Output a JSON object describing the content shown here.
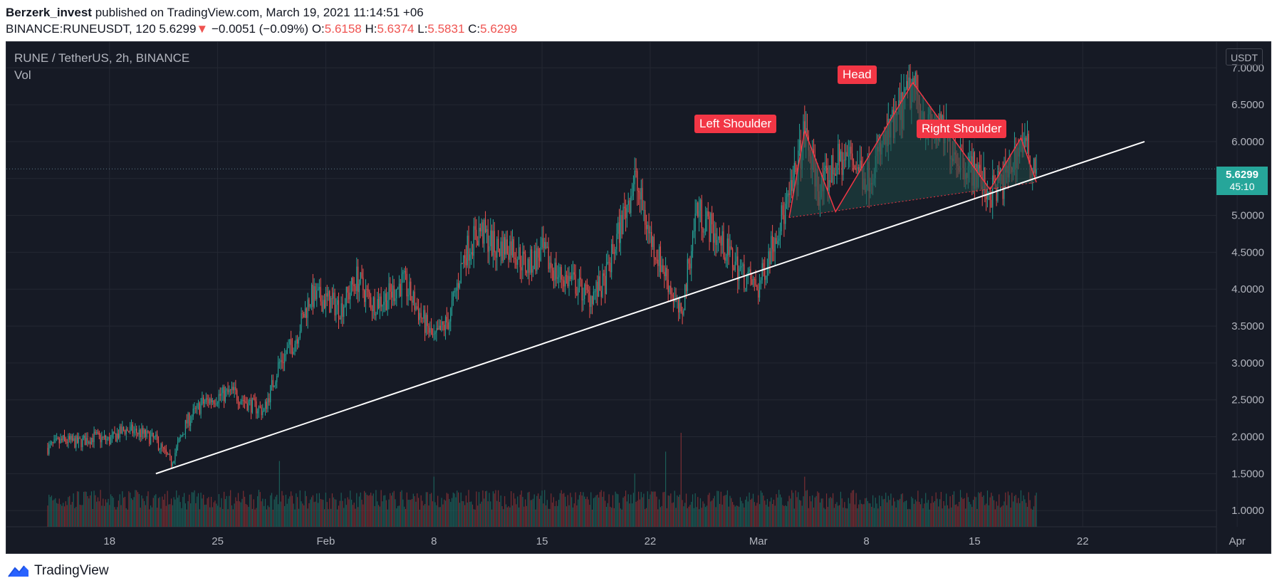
{
  "header": {
    "publisher": "Berzerk_invest",
    "published_text": "published on TradingView.com, March 19, 2021 11:14:51 +06",
    "symbol": "BINANCE:RUNEUSDT, 120",
    "last": "5.6299",
    "change_arrow": "▼",
    "change": "−0.0051 (−0.09%)",
    "o_label": "O:",
    "o_value": "5.6158",
    "h_label": "H:",
    "h_value": "5.6374",
    "l_label": "L:",
    "l_value": "5.5831",
    "c_label": "C:",
    "c_value": "5.6299"
  },
  "legend": {
    "title": "RUNE / TetherUS, 2h, BINANCE",
    "indicator": "Vol"
  },
  "price_axis": {
    "unit": "USDT",
    "last_price": "5.6299",
    "countdown": "45:10"
  },
  "annotations": {
    "left_shoulder": "Left Shoulder",
    "head": "Head",
    "right_shoulder": "Right Shoulder"
  },
  "footer": {
    "brand": "TradingView",
    "logo_icon": "tradingview-logo-icon"
  },
  "colors": {
    "background": "#161a25",
    "up": "#26a69a",
    "down": "#ef5350",
    "grid": "#242833",
    "axis_text": "#b2b5be",
    "trendline": "#ffffff",
    "pattern": "#f23645",
    "pattern_fill": "#1f4b47"
  },
  "chart_data": {
    "type": "candlestick",
    "symbol": "RUNE / TetherUS",
    "interval": "2h",
    "exchange": "BINANCE",
    "ylim": [
      0.78,
      7.35
    ],
    "y_ticks": [
      "1.0000",
      "1.5000",
      "2.0000",
      "2.5000",
      "3.0000",
      "3.5000",
      "4.0000",
      "4.5000",
      "5.0000",
      "5.5000",
      "6.0000",
      "6.5000",
      "7.0000"
    ],
    "x_ticks": [
      "18",
      "25",
      "Feb",
      "8",
      "15",
      "22",
      "Mar",
      "8",
      "15",
      "22",
      "Apr"
    ],
    "x_range": [
      "2021-01-14",
      "2021-04-04"
    ],
    "last_price": 5.6299,
    "price_path": [
      [
        "2021-01-14",
        1.85
      ],
      [
        "2021-01-15",
        1.95
      ],
      [
        "2021-01-16",
        1.92
      ],
      [
        "2021-01-17",
        2.0
      ],
      [
        "2021-01-18",
        1.95
      ],
      [
        "2021-01-19",
        2.1
      ],
      [
        "2021-01-20",
        2.05
      ],
      [
        "2021-01-21",
        1.95
      ],
      [
        "2021-01-22",
        1.65
      ],
      [
        "2021-01-23",
        2.2
      ],
      [
        "2021-01-24",
        2.45
      ],
      [
        "2021-01-25",
        2.55
      ],
      [
        "2021-01-26",
        2.6
      ],
      [
        "2021-01-27",
        2.45
      ],
      [
        "2021-01-28",
        2.35
      ],
      [
        "2021-01-29",
        3.0
      ],
      [
        "2021-01-30",
        3.3
      ],
      [
        "2021-01-31",
        3.9
      ],
      [
        "2021-02-01",
        3.85
      ],
      [
        "2021-02-02",
        3.75
      ],
      [
        "2021-02-03",
        4.15
      ],
      [
        "2021-02-04",
        3.8
      ],
      [
        "2021-02-05",
        3.9
      ],
      [
        "2021-02-06",
        4.1
      ],
      [
        "2021-02-07",
        3.7
      ],
      [
        "2021-02-08",
        3.3
      ],
      [
        "2021-02-09",
        3.6
      ],
      [
        "2021-02-10",
        4.5
      ],
      [
        "2021-02-11",
        4.8
      ],
      [
        "2021-02-12",
        4.55
      ],
      [
        "2021-02-13",
        4.6
      ],
      [
        "2021-02-14",
        4.3
      ],
      [
        "2021-02-15",
        4.5
      ],
      [
        "2021-02-16",
        4.2
      ],
      [
        "2021-02-17",
        4.1
      ],
      [
        "2021-02-18",
        3.9
      ],
      [
        "2021-02-19",
        4.05
      ],
      [
        "2021-02-20",
        4.8
      ],
      [
        "2021-02-21",
        5.5
      ],
      [
        "2021-02-22",
        4.7
      ],
      [
        "2021-02-23",
        4.2
      ],
      [
        "2021-02-24",
        3.6
      ],
      [
        "2021-02-25",
        5.1
      ],
      [
        "2021-02-26",
        4.8
      ],
      [
        "2021-02-27",
        4.5
      ],
      [
        "2021-02-28",
        4.2
      ],
      [
        "2021-03-01",
        4.0
      ],
      [
        "2021-03-02",
        4.7
      ],
      [
        "2021-03-03",
        5.2
      ],
      [
        "2021-03-04",
        6.1
      ],
      [
        "2021-03-05",
        5.3
      ],
      [
        "2021-03-06",
        5.7
      ],
      [
        "2021-03-07",
        5.8
      ],
      [
        "2021-03-08",
        5.5
      ],
      [
        "2021-03-09",
        5.9
      ],
      [
        "2021-03-10",
        6.3
      ],
      [
        "2021-03-11",
        6.75
      ],
      [
        "2021-03-12",
        6.2
      ],
      [
        "2021-03-13",
        6.1
      ],
      [
        "2021-03-14",
        5.8
      ],
      [
        "2021-03-15",
        5.6
      ],
      [
        "2021-03-16",
        5.3
      ],
      [
        "2021-03-17",
        5.5
      ],
      [
        "2021-03-18",
        6.0
      ],
      [
        "2021-03-19",
        5.63
      ]
    ],
    "trendline": {
      "start": [
        "2021-01-21",
        1.5
      ],
      "end": [
        "2021-03-26",
        6.0
      ]
    },
    "pattern": {
      "name": "head and shoulders",
      "vertices": [
        [
          "2021-03-03",
          4.97
        ],
        [
          "2021-03-04",
          6.15
        ],
        [
          "2021-03-06",
          5.05
        ],
        [
          "2021-03-11",
          6.8
        ],
        [
          "2021-03-16",
          5.35
        ],
        [
          "2021-03-18",
          6.05
        ],
        [
          "2021-03-19",
          5.45
        ]
      ],
      "neckline": {
        "start": [
          "2021-03-03",
          4.97
        ],
        "end": [
          "2021-03-19",
          5.45
        ]
      }
    },
    "volume_spikes": [
      [
        "2021-01-29",
        2.1
      ],
      [
        "2021-02-08",
        1.6
      ],
      [
        "2021-02-21",
        1.7
      ],
      [
        "2021-02-23",
        2.4
      ],
      [
        "2021-02-24",
        3.0
      ],
      [
        "2021-03-04",
        1.6
      ]
    ]
  }
}
